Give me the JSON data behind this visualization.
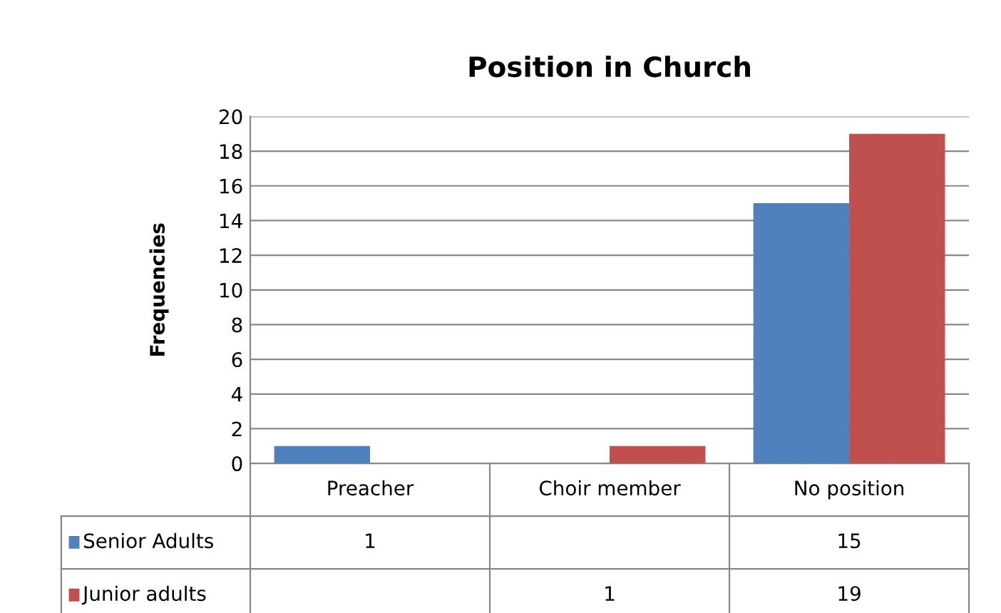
{
  "chart_data": {
    "type": "bar",
    "title": "Position in Church",
    "ylabel": "Frequencies",
    "categories": [
      "Preacher",
      "Choir member",
      "No position"
    ],
    "series": [
      {
        "name": "Senior Adults",
        "color": "#4f81bd",
        "values": [
          1,
          null,
          15
        ]
      },
      {
        "name": "Junior adults",
        "color": "#c0504d",
        "values": [
          null,
          1,
          19
        ]
      }
    ],
    "ylim": [
      0,
      20
    ],
    "yticks": [
      0,
      2,
      4,
      6,
      8,
      10,
      12,
      14,
      16,
      18,
      20
    ],
    "grid": "y",
    "legend": "bottom",
    "data_labels": true
  }
}
